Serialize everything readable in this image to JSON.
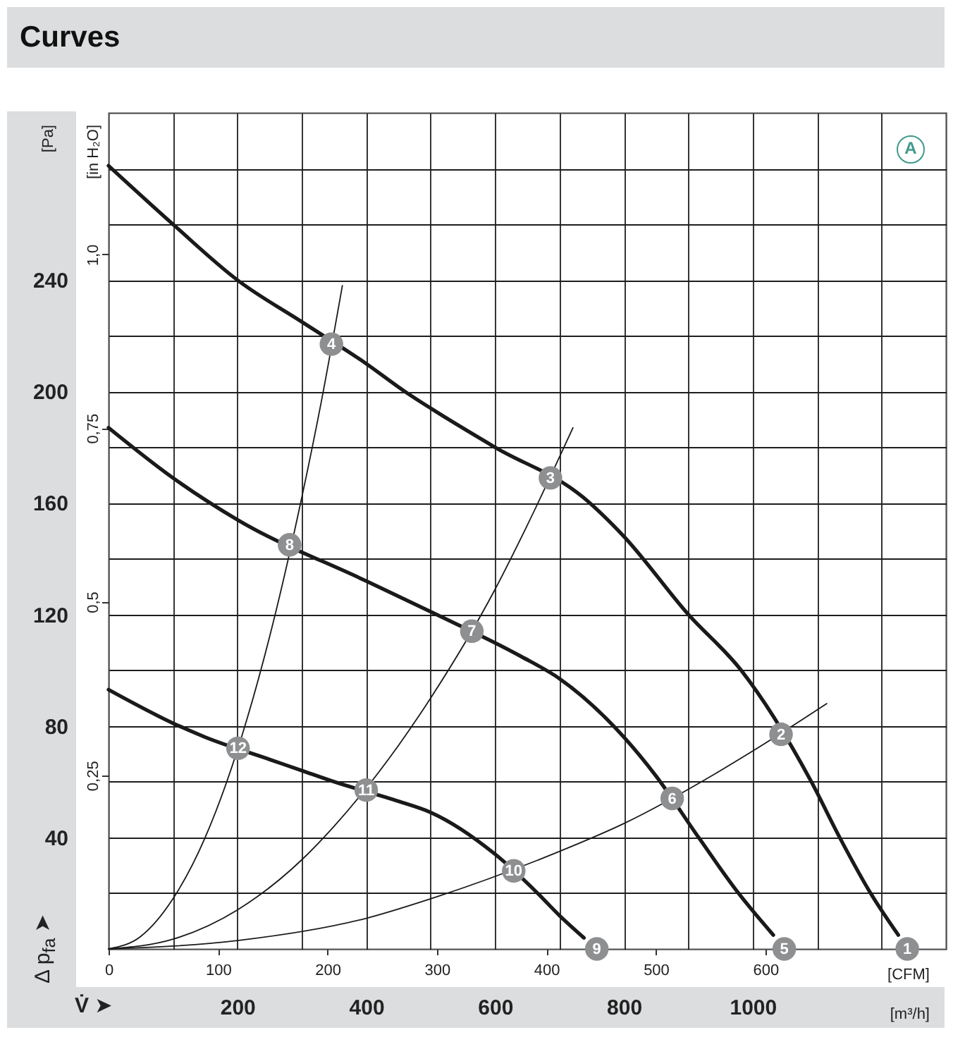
{
  "chart_data": {
    "type": "line",
    "title": "Curves",
    "xlabel": "[m³/h]",
    "x2label": "[CFM]",
    "ylabel": "[Pa]",
    "y2label": "[in H₂O]",
    "annotations": [
      "V̇ ➤",
      "Δ p$_{fa}$ ➤",
      "A",
      {
        "text": "1",
        "x": 1240,
        "y": 0
      },
      {
        "text": "2",
        "x": 1044,
        "y": 77
      },
      {
        "text": "3",
        "x": 686,
        "y": 169
      },
      {
        "text": "4",
        "x": 346,
        "y": 217
      },
      {
        "text": "5",
        "x": 1049,
        "y": 0
      },
      {
        "text": "6",
        "x": 875,
        "y": 54
      },
      {
        "text": "7",
        "x": 564,
        "y": 114
      },
      {
        "text": "8",
        "x": 281,
        "y": 145
      },
      {
        "text": "9",
        "x": 758,
        "y": 0
      },
      {
        "text": "10",
        "x": 629,
        "y": 28
      },
      {
        "text": "11",
        "x": 400,
        "y": 57
      },
      {
        "text": "12",
        "x": 201,
        "y": 72
      }
    ],
    "xlim": [
      0,
      1300
    ],
    "xticks": [
      {
        "value": 100,
        "label": null
      },
      200,
      {
        "value": 300,
        "label": null
      },
      400,
      {
        "value": 500,
        "label": null
      },
      600,
      {
        "value": 700,
        "label": null
      },
      800,
      {
        "value": 900,
        "label": null
      },
      1000,
      {
        "value": 1100,
        "label": null
      },
      {
        "value": 1200,
        "label": null
      }
    ],
    "x2lim": [
      0,
      765
    ],
    "x2ticks": [
      0,
      100,
      200,
      300,
      400,
      500,
      600
    ],
    "ylim": [
      0,
      300
    ],
    "yticks": [
      {
        "value": 20,
        "label": null
      },
      40,
      {
        "value": 60,
        "label": null
      },
      80,
      {
        "value": 100,
        "label": null
      },
      120,
      {
        "value": 140,
        "label": null
      },
      160,
      {
        "value": 180,
        "label": null
      },
      200,
      {
        "value": 220,
        "label": null
      },
      240,
      {
        "value": 260,
        "label": null
      },
      {
        "value": 280,
        "label": null
      }
    ],
    "y2lim": [
      0,
      1.204
    ],
    "y2ticks": [
      {
        "value": 0.25,
        "label": "0,25"
      },
      {
        "value": 0.5,
        "label": "0,5"
      },
      {
        "value": 0.75,
        "label": "0,75"
      },
      {
        "value": 1,
        "label": "1,0"
      }
    ],
    "grid": true,
    "series": [
      {
        "color": "#1a1a1a",
        "x": [
          0,
          100,
          200,
          300,
          400,
          460,
          500,
          600,
          737,
          800,
          900,
          982,
          1091,
          1135,
          1183,
          1226
        ],
        "values": [
          281,
          260,
          240,
          225,
          210,
          200,
          194,
          180,
          162,
          148,
          120,
          100,
          60,
          40,
          20,
          5
        ]
      },
      {
        "color": "#1a1a1a",
        "x": [
          0,
          100,
          200,
          400,
          500,
          640,
          700,
          800,
          850,
          916,
          978,
          1032
        ],
        "values": [
          187,
          169,
          154,
          132,
          121,
          105,
          97,
          76,
          62,
          40,
          20,
          5
        ]
      },
      {
        "color": "#1a1a1a",
        "x": [
          0,
          100,
          150,
          250,
          300,
          350,
          450,
          500,
          600,
          666,
          700,
          738
        ],
        "values": [
          93,
          81,
          76,
          68,
          64,
          60,
          53,
          49,
          34,
          20,
          12,
          4
        ]
      },
      {
        "color": "#1a1a1a",
        "x": [
          0,
          50,
          100,
          150,
          250,
          300,
          330,
          363
        ],
        "values": [
          0,
          4.5,
          18,
          40,
          112,
          162,
          196,
          238
        ]
      },
      {
        "color": "#1a1a1a",
        "x": [
          0,
          100,
          200,
          300,
          350,
          450,
          500,
          600,
          650,
          721
        ],
        "values": [
          0,
          3.5,
          14,
          32,
          44,
          73,
          90,
          129,
          152,
          187
        ]
      },
      {
        "color": "#1a1a1a",
        "x": [
          0,
          200,
          400,
          500,
          700,
          800,
          950,
          1000,
          1115
        ],
        "values": [
          0,
          3,
          11,
          18,
          35,
          45,
          64,
          71,
          88
        ]
      },
      {
        "type": "scatter",
        "color": "#8e8f91",
        "marker": "circle",
        "x": [
          1240,
          1044,
          686,
          346,
          1049,
          875,
          564,
          281,
          758,
          629,
          400,
          201
        ],
        "values": [
          0,
          77,
          169,
          217,
          0,
          54,
          114,
          145,
          0,
          28,
          57,
          72
        ]
      }
    ]
  }
}
